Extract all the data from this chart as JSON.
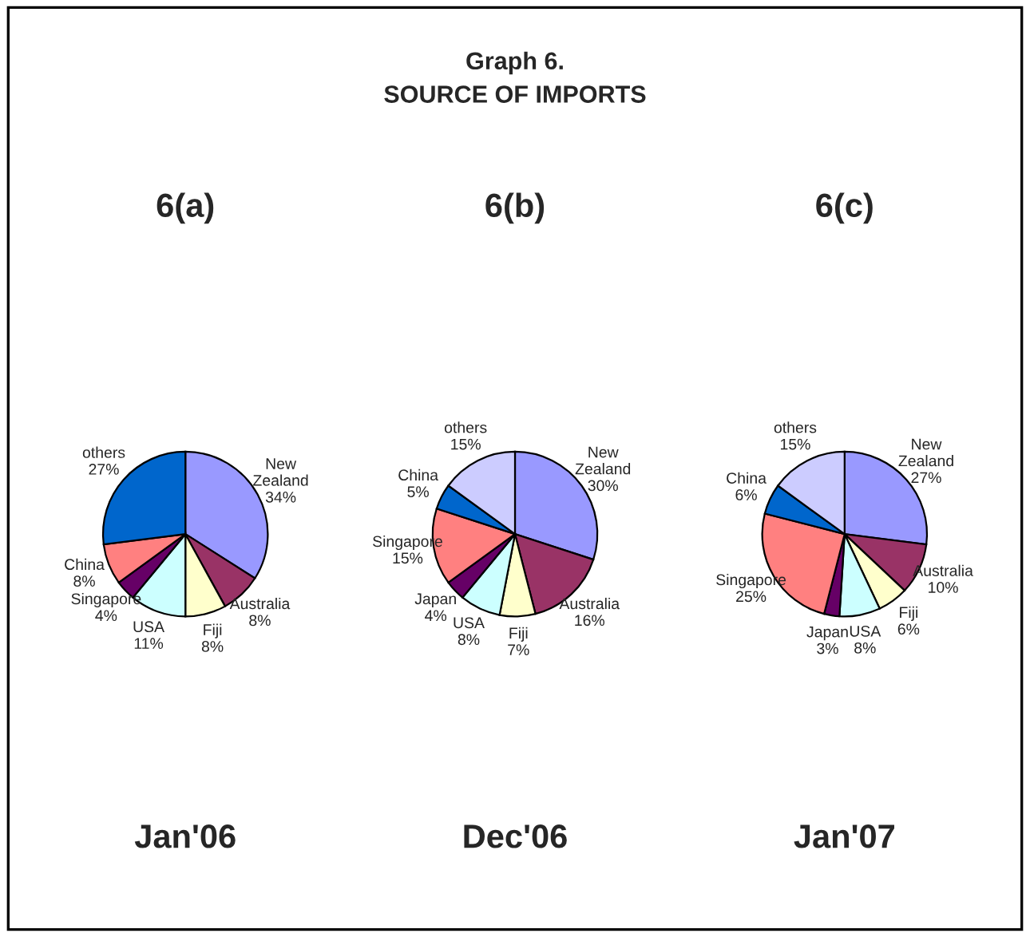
{
  "chart_data": [
    {
      "type": "pie",
      "title": "6(a)",
      "annotations": [
        "Graph 6.\nSOURCE OF IMPORTS",
        "Jan'06"
      ],
      "categories": [
        "New Zealand",
        "Australia",
        "Fiji",
        "USA",
        "Singapore",
        "China",
        "others"
      ],
      "values": [
        34,
        8,
        8,
        11,
        4,
        8,
        27
      ],
      "value_labels": [
        "34%",
        "8%",
        "8%",
        "11%",
        "4%",
        "8%",
        "27%"
      ],
      "colors": [
        "#9999ff",
        "#993366",
        "#ffffcc",
        "#ccffff",
        "#660066",
        "#ff8080",
        "#0066cc"
      ],
      "legend": false
    },
    {
      "type": "pie",
      "title": "6(b)",
      "annotations": [
        "Dec'06"
      ],
      "categories": [
        "New Zealand",
        "Australia",
        "Fiji",
        "USA",
        "Japan",
        "Singapore",
        "China",
        "others"
      ],
      "values": [
        30,
        16,
        7,
        8,
        4,
        15,
        5,
        15
      ],
      "value_labels": [
        "30%",
        "16%",
        "7%",
        "8%",
        "4%",
        "15%",
        "5%",
        "15%"
      ],
      "colors": [
        "#9999ff",
        "#993366",
        "#ffffcc",
        "#ccffff",
        "#660066",
        "#ff8080",
        "#0066cc",
        "#ccccff"
      ],
      "legend": false
    },
    {
      "type": "pie",
      "title": "6(c)",
      "annotations": [
        "Jan'07"
      ],
      "categories": [
        "New Zealand",
        "Australia",
        "Fiji",
        "USA",
        "Japan",
        "Singapore",
        "China",
        "others"
      ],
      "values": [
        27,
        10,
        6,
        8,
        3,
        25,
        6,
        15
      ],
      "value_labels": [
        "27%",
        "10%",
        "6%",
        "8%",
        "3%",
        "25%",
        "6%",
        "15%"
      ],
      "colors": [
        "#9999ff",
        "#993366",
        "#ffffcc",
        "#ccffff",
        "#660066",
        "#ff8080",
        "#0066cc",
        "#ccccff"
      ],
      "legend": false
    }
  ]
}
